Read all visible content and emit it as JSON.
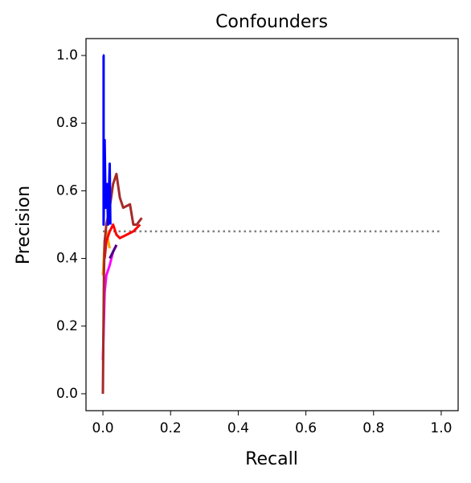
{
  "chart_data": {
    "type": "line",
    "title": "Confounders",
    "xlabel": "Recall",
    "ylabel": "Precision",
    "xlim": [
      -0.05,
      1.05
    ],
    "ylim": [
      -0.05,
      1.05
    ],
    "xticks": [
      {
        "value": 0,
        "label": "0.0"
      },
      0.2,
      0.4,
      0.6,
      0.8,
      {
        "value": 1,
        "label": "1.0"
      }
    ],
    "yticks": [
      {
        "value": 0,
        "label": "0.0"
      },
      0.2,
      0.4,
      0.6,
      0.8,
      {
        "value": 1,
        "label": "1.0"
      }
    ],
    "series": [
      {
        "color": "#808080",
        "style": "dotted",
        "x": [
          0,
          1
        ],
        "values": [
          0.48,
          0.48
        ]
      },
      {
        "color": "#ff00ff",
        "x": [
          0,
          0.005,
          0.01,
          0.02,
          0.03,
          0.04
        ],
        "values": [
          0.1,
          0.3,
          0.35,
          0.38,
          0.42,
          0.44
        ]
      },
      {
        "color": "#4b0082",
        "x": [
          0.02,
          0.03,
          0.04
        ],
        "values": [
          0.4,
          0.42,
          0.44
        ]
      },
      {
        "color": "#ffa500",
        "x": [
          0,
          0.005,
          0.01,
          0.02
        ],
        "values": [
          0.35,
          0.45,
          0.48,
          0.43
        ]
      },
      {
        "color": "#ff0000",
        "x": [
          0.005,
          0.01,
          0.02,
          0.03,
          0.04,
          0.05,
          0.07,
          0.09,
          0.11
        ],
        "values": [
          0.4,
          0.45,
          0.48,
          0.5,
          0.47,
          0.46,
          0.47,
          0.48,
          0.5
        ]
      },
      {
        "color": "#a52a2a",
        "x": [
          0,
          0.003,
          0.005,
          0.01,
          0.02,
          0.03,
          0.04,
          0.05,
          0.06,
          0.08,
          0.09,
          0.1,
          0.115
        ],
        "values": [
          0,
          0.35,
          0.45,
          0.5,
          0.55,
          0.62,
          0.65,
          0.58,
          0.55,
          0.56,
          0.5,
          0.5,
          0.52
        ]
      },
      {
        "color": "#0000ff",
        "x": [
          0,
          0.002,
          0.002,
          0.005,
          0.008,
          0.012,
          0.015,
          0.02,
          0.022
        ],
        "values": [
          1,
          1,
          0.5,
          0.75,
          0.55,
          0.62,
          0.5,
          0.68,
          0.5
        ]
      }
    ]
  }
}
